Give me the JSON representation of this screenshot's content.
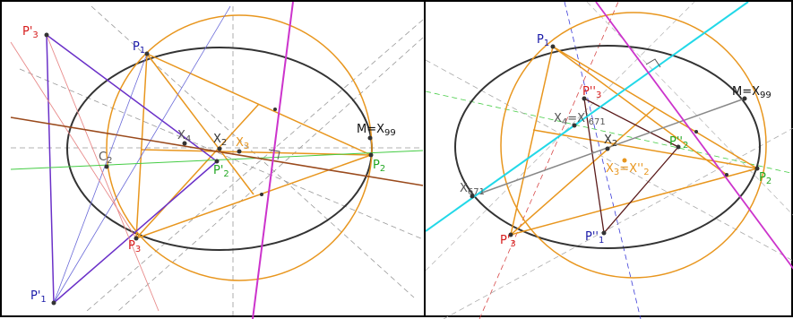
{
  "colors": {
    "ellipse": "#333333",
    "circle": "#e8961e",
    "blue": "#1a1aa8",
    "red": "#d61c1c",
    "green": "#22a822",
    "magenta": "#cc33cc",
    "violet": "#6a30c8",
    "brown": "#9a4a1c",
    "cyan": "#22d8e8",
    "gray": "#888888",
    "darkred": "#5a1a1a"
  },
  "left": {
    "P1": {
      "main": "P",
      "sub": "1"
    },
    "P2": {
      "main": "P",
      "sub": "2"
    },
    "P3": {
      "main": "P",
      "sub": "3"
    },
    "P1p": {
      "main": "P'",
      "sub": "1"
    },
    "P2p": {
      "main": "P'",
      "sub": "2"
    },
    "P3p": {
      "main": "P'",
      "sub": "3"
    },
    "M": {
      "main": "M=X",
      "sub": "99"
    },
    "X4": {
      "main": "X",
      "sub": "4"
    },
    "X2": {
      "main": "X",
      "sub": "2"
    },
    "X3": {
      "main": "X",
      "sub": "3"
    },
    "C2": {
      "main": "C",
      "sub": "2"
    }
  },
  "right": {
    "P1": {
      "main": "P",
      "sub": "1"
    },
    "P2": {
      "main": "P",
      "sub": "2"
    },
    "P3": {
      "main": "P'",
      "sub": "3"
    },
    "M": {
      "main": "M=X",
      "sub": "99"
    },
    "X4": {
      "main": "X",
      "sub": "4",
      "rest": "=X'",
      "sub2": "671"
    },
    "X2": {
      "main": "X",
      "sub": "2"
    },
    "X671": {
      "main": "X",
      "sub": "671"
    },
    "P1pp": {
      "main": "P''",
      "sub": "1"
    },
    "P2pp": {
      "main": "P''",
      "sub": "2"
    },
    "P3pp": {
      "main": "P''",
      "sub": "3"
    },
    "X3eq": {
      "main": "X",
      "sub": "3",
      "rest": "=X''",
      "sub2": "2"
    }
  }
}
